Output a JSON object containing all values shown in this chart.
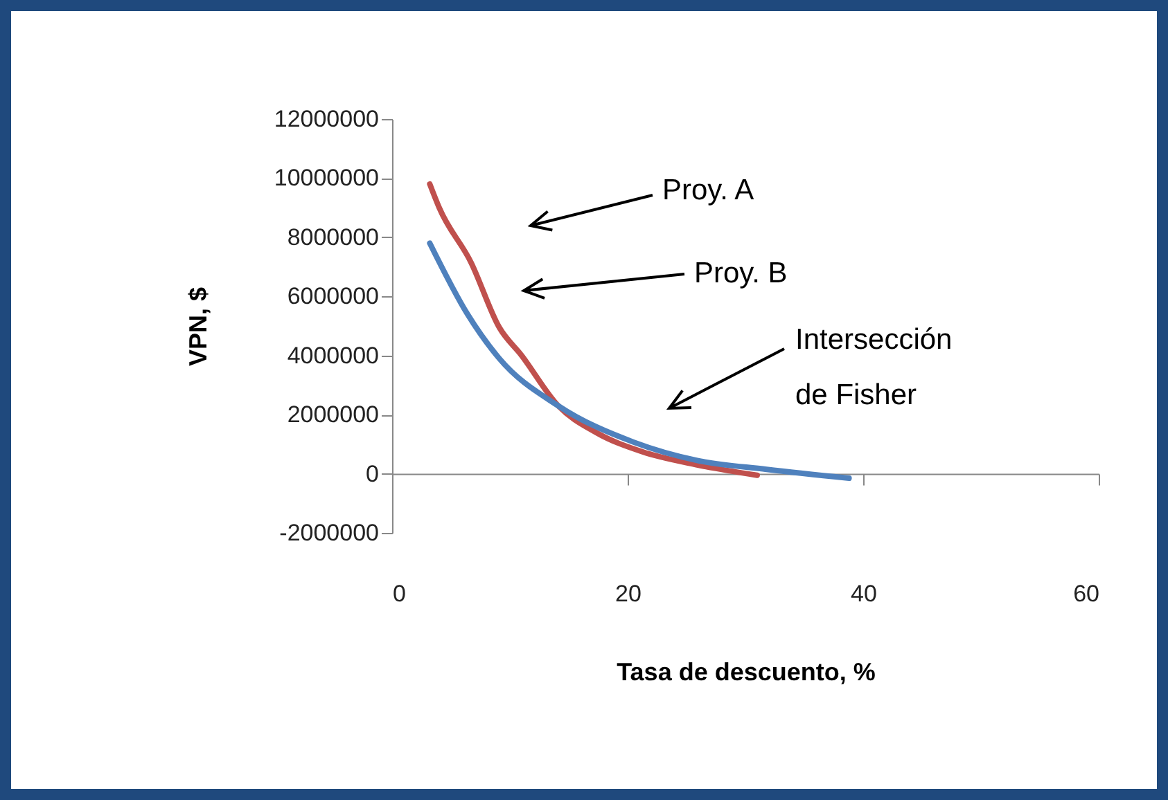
{
  "chart_data": {
    "type": "line",
    "xlabel": "Tasa de descuento, %",
    "ylabel": "VPN, $",
    "xlim": [
      0,
      60
    ],
    "xticks": [
      0,
      20,
      40,
      60
    ],
    "ylim": [
      -2000000,
      12000000
    ],
    "yticks": [
      -2000000,
      0,
      2000000,
      4000000,
      6000000,
      8000000,
      10000000,
      12000000
    ],
    "marker": "none",
    "line_style": "solid",
    "series": [
      {
        "color": "#c0504d",
        "x": [
          3.2,
          4.0,
          6.7,
          9.1,
          11.0,
          14.1,
          17.3,
          21.2,
          25.9,
          31.0
        ],
        "values": [
          9800000,
          9000000,
          7150000,
          4950000,
          4000000,
          2300000,
          1400000,
          750000,
          300000,
          -50000
        ]
      },
      {
        "color": "#4f81bd",
        "x": [
          3.2,
          6.4,
          9.1,
          14.1,
          20.5,
          25.9,
          31.8,
          38.8
        ],
        "values": [
          7800000,
          5400000,
          3900000,
          2300000,
          1070000,
          450000,
          150000,
          -150000
        ]
      }
    ],
    "annotations": [
      "Proy. A",
      "Proy. B",
      "Intersección de Fisher"
    ]
  }
}
